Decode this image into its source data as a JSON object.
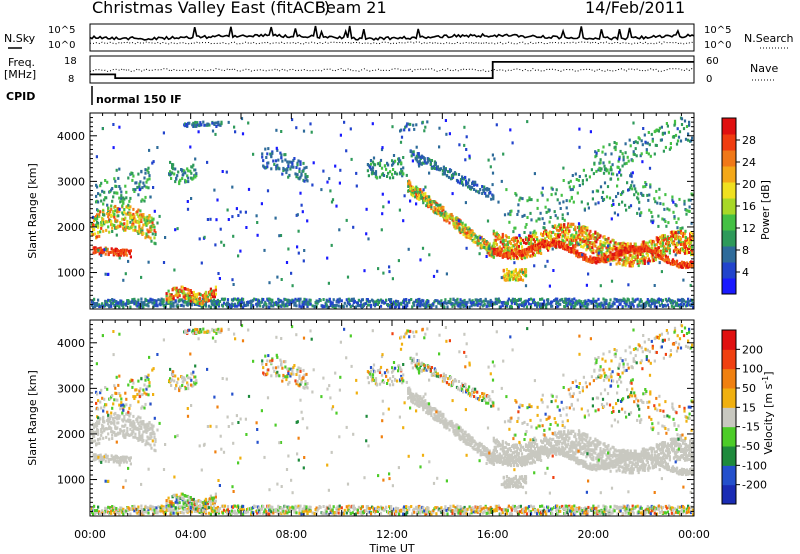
{
  "header": {
    "station": "Christmas Valley East (fitACF)",
    "beam": "Beam 21",
    "date": "14/Feb/2011"
  },
  "side_labels": {
    "nsky": "N.Sky",
    "nsearch": "N.Search",
    "freq": "Freq.",
    "freq_unit": "[MHz]",
    "nave": "Nave",
    "cpid": "CPID",
    "cpid_value": "normal 150 IF"
  },
  "noise_panel": {
    "left_ticks": [
      "10^5",
      "10^0"
    ],
    "right_ticks": [
      "10^5",
      "10^0"
    ]
  },
  "freq_panel": {
    "left_ticks": [
      "18",
      "8"
    ],
    "right_ticks": [
      "60",
      "0"
    ],
    "freq_steps": [
      [
        0,
        11.2
      ],
      [
        1.0,
        11.2
      ],
      [
        1.0,
        9.8
      ],
      [
        16.0,
        9.8
      ],
      [
        16.0,
        15.8
      ],
      [
        24,
        15.8
      ]
    ]
  },
  "chart_data": [
    {
      "type": "heatmap",
      "name": "power",
      "xlabel": "",
      "ylabel": "Slant Range [km]",
      "xlim": [
        0,
        24
      ],
      "ylim": [
        200,
        4500
      ],
      "yticks": [
        "1000",
        "2000",
        "3000",
        "4000"
      ],
      "colorbar": {
        "label": "Power [dB]",
        "ticks": [
          "4",
          "8",
          "12",
          "16",
          "20",
          "24",
          "28"
        ],
        "colors": [
          "#1a1aff",
          "#2244cc",
          "#2e6b9a",
          "#2e9a5a",
          "#44c044",
          "#a8d828",
          "#f0e020",
          "#f4a818",
          "#f07818",
          "#f03c10",
          "#e01010"
        ]
      }
    },
    {
      "type": "heatmap",
      "name": "velocity",
      "xlabel": "Time UT",
      "ylabel": "Slant Range [km]",
      "xlim": [
        0,
        24
      ],
      "ylim": [
        200,
        4500
      ],
      "yticks": [
        "1000",
        "2000",
        "3000",
        "4000"
      ],
      "xticks": [
        "00:00",
        "04:00",
        "08:00",
        "12:00",
        "16:00",
        "20:00",
        "00:00"
      ],
      "colorbar": {
        "label": "Velocity [m s",
        "label_sup": "-1",
        "label_close": "]",
        "ticks": [
          "200",
          "100",
          "50",
          "15",
          "-15",
          "-50",
          "-100",
          "-200"
        ],
        "colors": [
          "#1a2cb4",
          "#2450cc",
          "#1e8a3c",
          "#4ccc28",
          "#c8c8c0",
          "#f0b010",
          "#f08010",
          "#f04010",
          "#e01010"
        ]
      }
    }
  ],
  "palette": {
    "ground_scatter": "#c8c8c0"
  }
}
